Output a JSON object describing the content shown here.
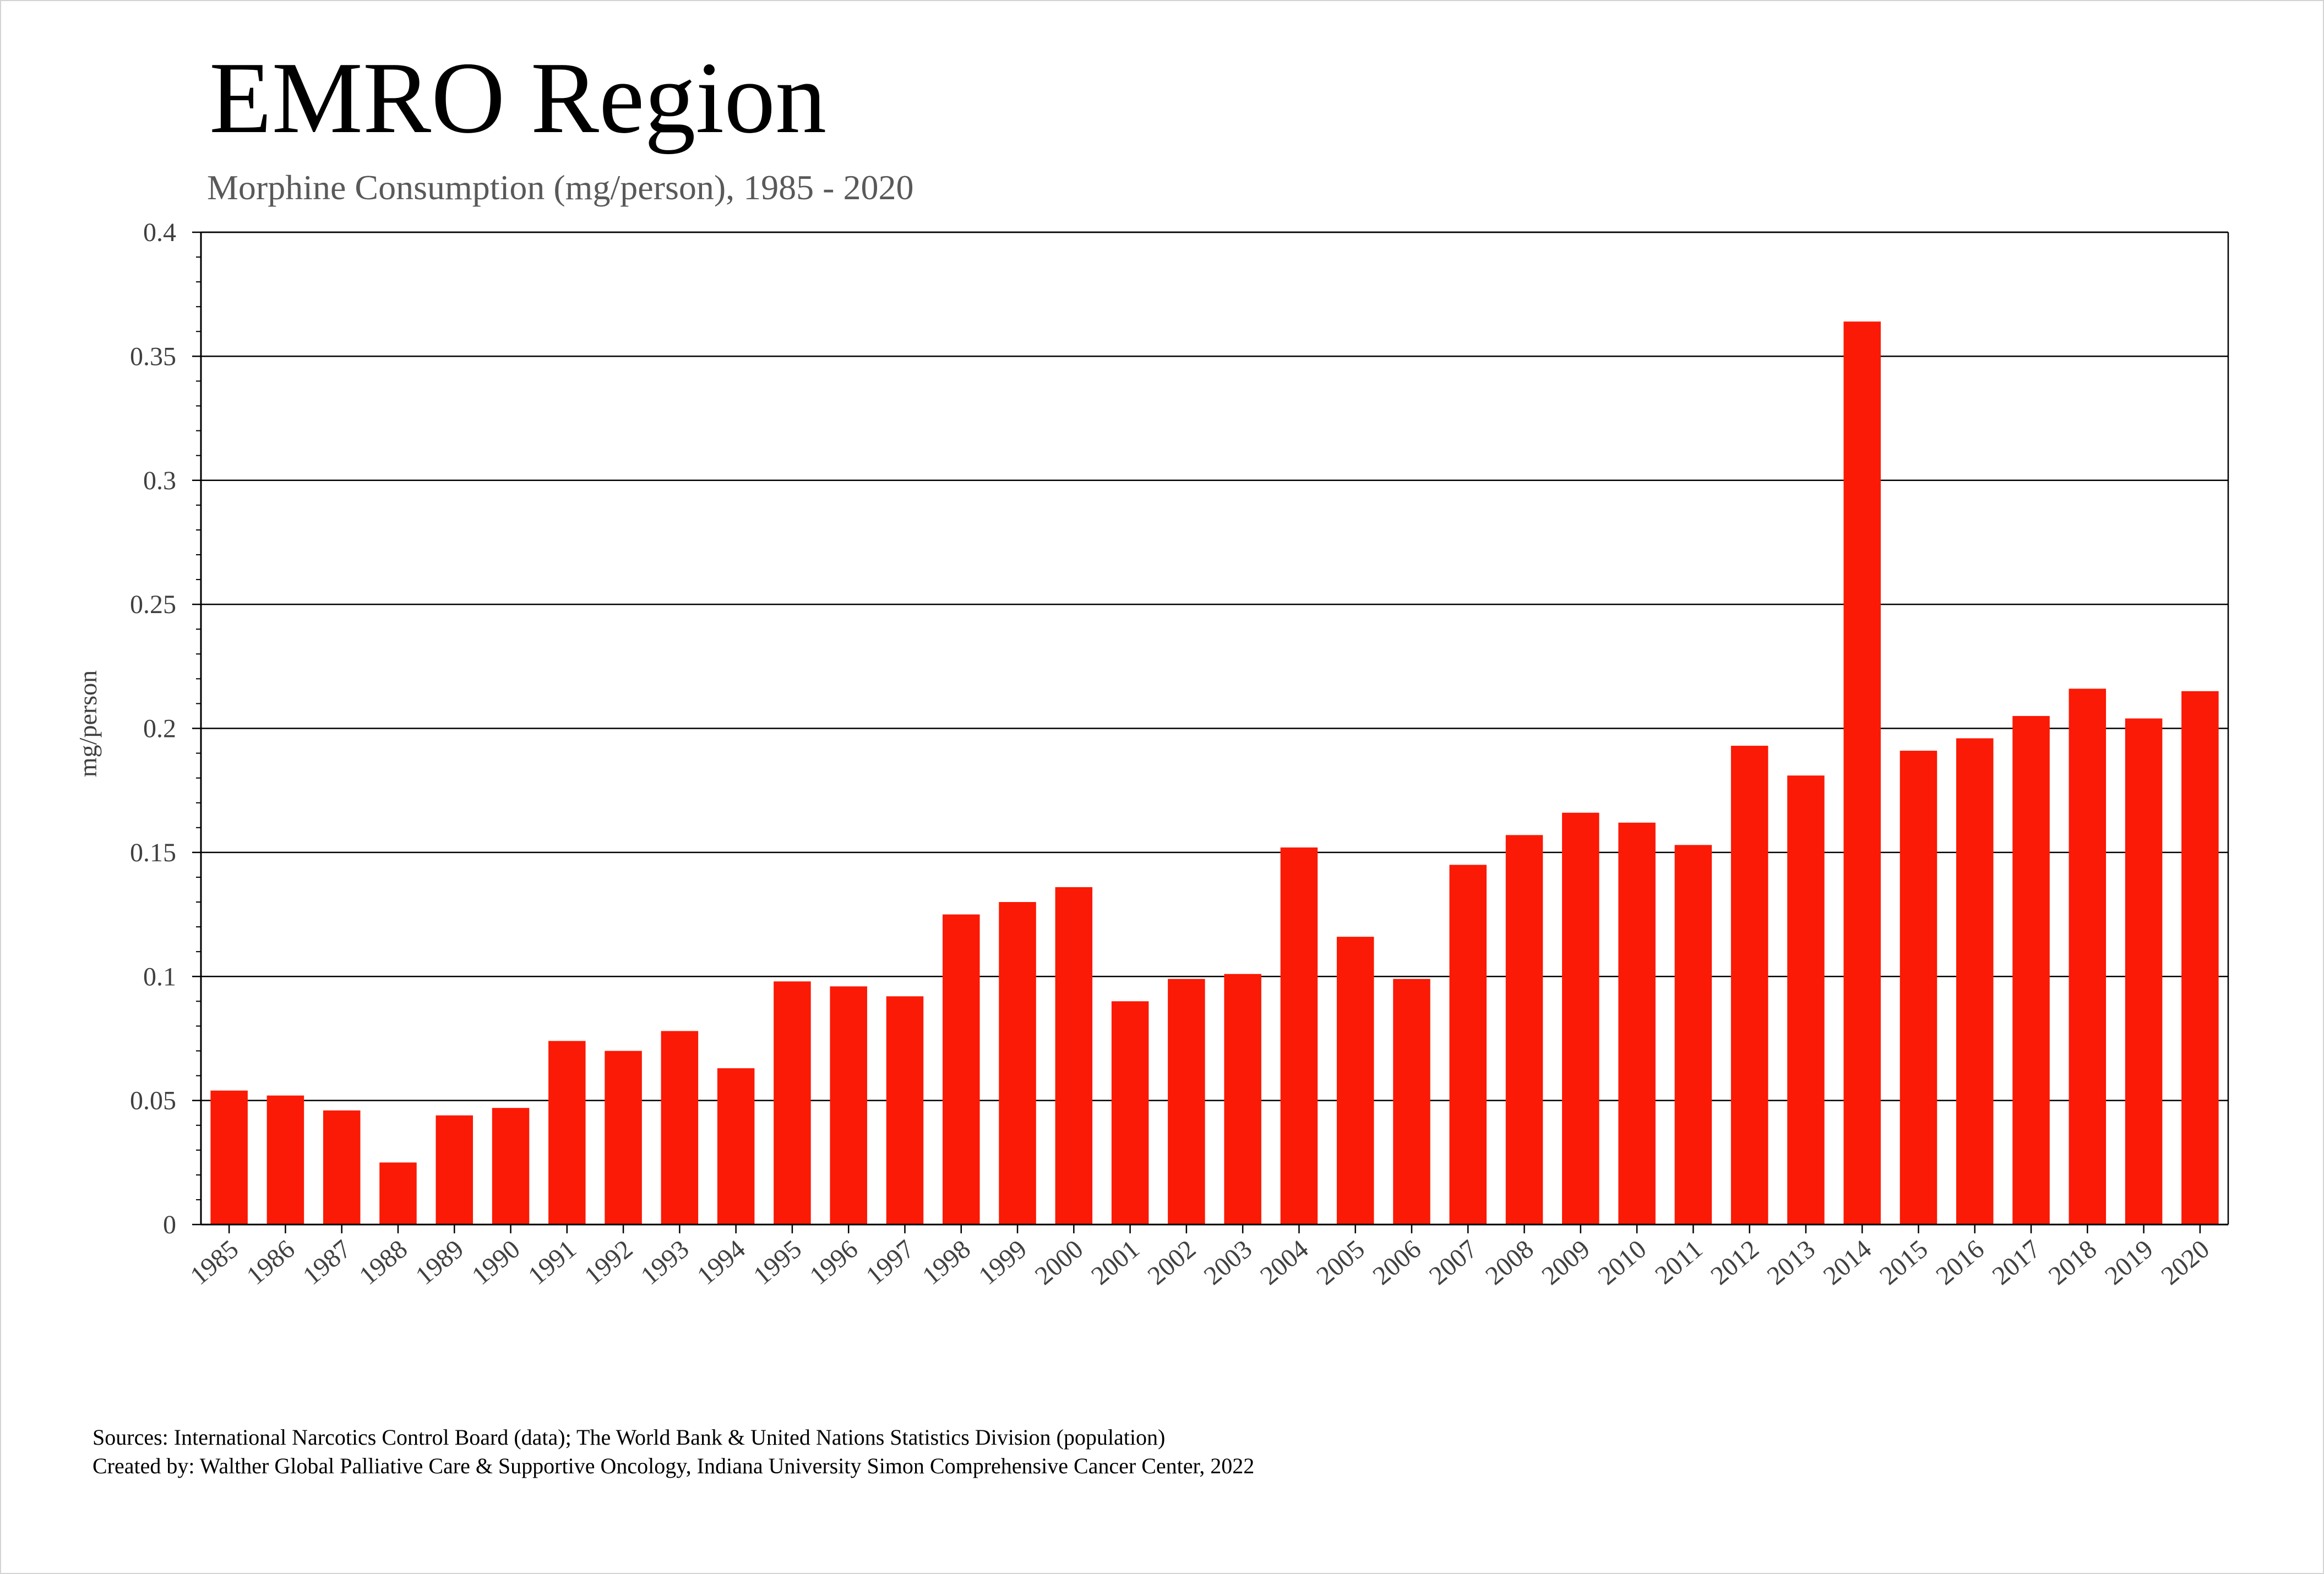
{
  "chart_data": {
    "type": "bar",
    "title": "EMRO Region",
    "subtitle": "Morphine Consumption (mg/person), 1985 - 2020",
    "xlabel": "",
    "ylabel": "mg/person",
    "ylim": [
      0,
      0.4
    ],
    "yticks": [
      "0",
      "0.05",
      "0.1",
      "0.15",
      "0.2",
      "0.25",
      "0.3",
      "0.35",
      "0.4"
    ],
    "grid": true,
    "bar_color": "#fa1a05",
    "categories": [
      "1985",
      "1986",
      "1987",
      "1988",
      "1989",
      "1990",
      "1991",
      "1992",
      "1993",
      "1994",
      "1995",
      "1996",
      "1997",
      "1998",
      "1999",
      "2000",
      "2001",
      "2002",
      "2003",
      "2004",
      "2005",
      "2006",
      "2007",
      "2008",
      "2009",
      "2010",
      "2011",
      "2012",
      "2013",
      "2014",
      "2015",
      "2016",
      "2017",
      "2018",
      "2019",
      "2020"
    ],
    "values": [
      0.054,
      0.052,
      0.046,
      0.025,
      0.044,
      0.047,
      0.074,
      0.07,
      0.078,
      0.063,
      0.098,
      0.096,
      0.092,
      0.125,
      0.13,
      0.136,
      0.09,
      0.099,
      0.101,
      0.152,
      0.116,
      0.099,
      0.145,
      0.157,
      0.166,
      0.162,
      0.153,
      0.193,
      0.181,
      0.364,
      0.191,
      0.196,
      0.205,
      0.216,
      0.204,
      0.215
    ],
    "footer": [
      "Sources: International Narcotics Control Board (data); The World Bank & United Nations Statistics Division (population)",
      "Created by: Walther  Global Palliative Care & Supportive Oncology, Indiana University Simon Comprehensive Cancer Center, 2022"
    ]
  }
}
